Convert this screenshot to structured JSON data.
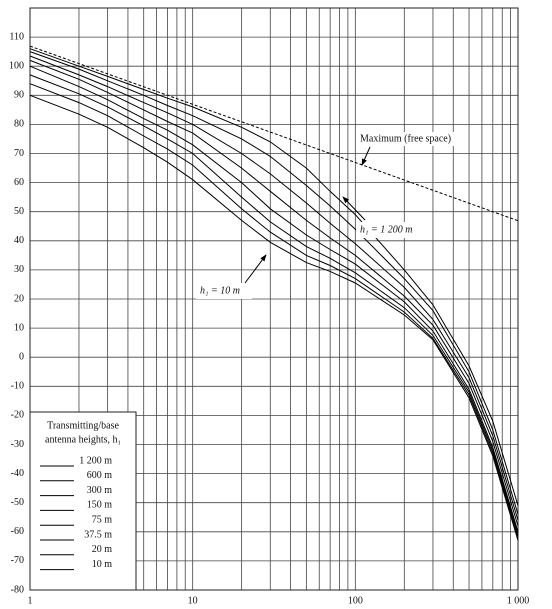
{
  "chart_data": {
    "type": "line",
    "xscale": "log",
    "xlim": [
      1,
      1000
    ],
    "ylim": [
      -80,
      120
    ],
    "xticks": [
      1,
      10,
      100,
      {
        "value": 1000,
        "label": "1 000"
      }
    ],
    "xgrid": [
      2,
      3,
      4,
      5,
      6,
      7,
      8,
      9,
      20,
      30,
      40,
      50,
      60,
      70,
      80,
      90,
      200,
      300,
      400,
      500,
      600,
      700,
      800,
      900
    ],
    "yticks": [
      -80,
      -70,
      -60,
      -50,
      -40,
      -30,
      -20,
      -10,
      0,
      10,
      20,
      30,
      40,
      50,
      60,
      70,
      80,
      90,
      100,
      110
    ],
    "grid": true,
    "x": [
      1,
      2,
      3,
      5,
      7,
      10,
      20,
      30,
      50,
      70,
      100,
      200,
      300,
      500,
      700,
      1000
    ],
    "series": [
      {
        "name": "1 200 m",
        "color": "#000000",
        "values": [
          106,
          100,
          96.5,
          92,
          89,
          86,
          79,
          74,
          65,
          57,
          49,
          30,
          18,
          -3,
          -22,
          -51
        ]
      },
      {
        "name": "600 m",
        "color": "#000000",
        "values": [
          105,
          99,
          95,
          90,
          86.5,
          83,
          75,
          69,
          59,
          52,
          44,
          27,
          16,
          -5,
          -25,
          -54
        ]
      },
      {
        "name": "300 m",
        "color": "#000000",
        "values": [
          103.5,
          97,
          93,
          87.5,
          84,
          80,
          70,
          63,
          53,
          46,
          39,
          24,
          13,
          -7,
          -27,
          -56
        ]
      },
      {
        "name": "150 m",
        "color": "#000000",
        "values": [
          102,
          95.5,
          91,
          85,
          81,
          77,
          65,
          57,
          47,
          41,
          35,
          21,
          11,
          -9,
          -29,
          -58
        ]
      },
      {
        "name": "75 m",
        "color": "#000000",
        "values": [
          100,
          93,
          88.5,
          82,
          78,
          73,
          60,
          51,
          42,
          37,
          32,
          19,
          9,
          -11,
          -31,
          -60
        ]
      },
      {
        "name": "37.5 m",
        "color": "#000000",
        "values": [
          97,
          90.5,
          86,
          79.5,
          75,
          70,
          55,
          46.5,
          38,
          34,
          29,
          17,
          7.5,
          -12,
          -32,
          -61
        ]
      },
      {
        "name": "20 m",
        "color": "#000000",
        "values": [
          94,
          87.5,
          83,
          76,
          71.5,
          66,
          51,
          43,
          35,
          31.5,
          27,
          15.5,
          6.5,
          -13,
          -33,
          -62
        ]
      },
      {
        "name": "10 m",
        "color": "#000000",
        "values": [
          90,
          83.5,
          79,
          72,
          67,
          61,
          47,
          39.5,
          32.5,
          29.5,
          25.5,
          14.5,
          6,
          -14,
          -34,
          -63
        ]
      }
    ],
    "free_space": {
      "name": "Maximum (free space)",
      "color": "#000000",
      "x": [
        1,
        1000
      ],
      "values": [
        106.9,
        46.9
      ]
    },
    "legend_title": [
      "Transmitting/base",
      "antenna heights, h₁"
    ],
    "annotations": [
      "h₁ = 1 200 m",
      "h₁ = 10 m"
    ]
  }
}
